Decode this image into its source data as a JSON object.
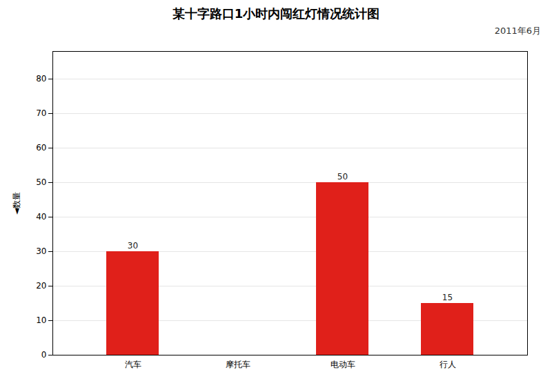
{
  "chart_data": {
    "type": "bar",
    "title": "某十字路口1小时内闯红灯情况统计图",
    "subtitle": "2011年6月",
    "ylabel": "◄数量",
    "categories": [
      "汽车",
      "摩托车",
      "电动车",
      "行人"
    ],
    "values": [
      30,
      0,
      50,
      15
    ],
    "value_labels": [
      "30",
      null,
      "50",
      "15"
    ],
    "data_labels": true,
    "color": "#e0201a",
    "ylim": [
      0,
      88
    ],
    "yticks": [
      0,
      10,
      20,
      30,
      40,
      50,
      60,
      70,
      80
    ],
    "grid": true
  }
}
